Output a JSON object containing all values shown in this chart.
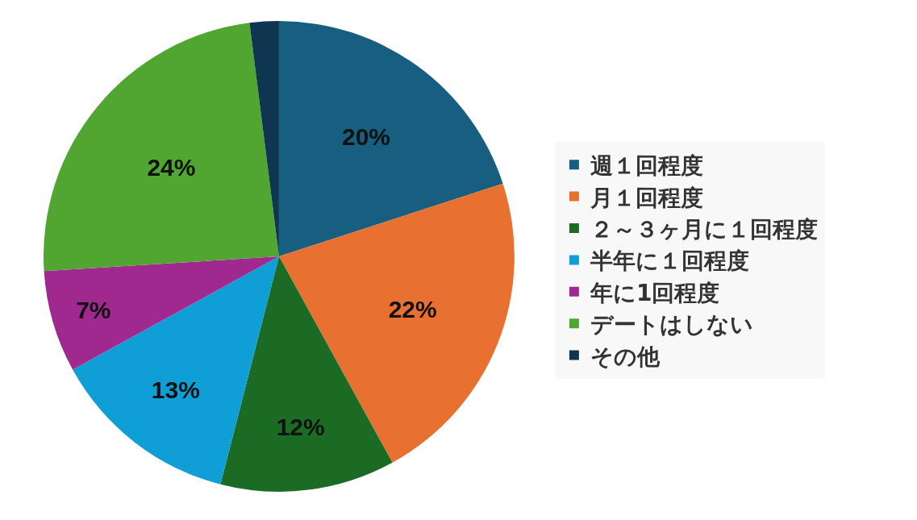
{
  "chart_data": {
    "type": "pie",
    "categories": [
      "週１回程度",
      "月１回程度",
      "２～３ヶ月に１回程度",
      "半年に１回程度",
      "年に1回程度",
      "デートはしない",
      "その他"
    ],
    "values": [
      20,
      22,
      12,
      13,
      7,
      24,
      2
    ],
    "colors": [
      "#175e81",
      "#e87131",
      "#1b6b24",
      "#0f9fd6",
      "#a02990",
      "#50a631",
      "#0e3650"
    ],
    "value_labels": [
      "20%",
      "22%",
      "12%",
      "13%",
      "7%",
      "24%",
      null
    ],
    "legend": "right"
  }
}
